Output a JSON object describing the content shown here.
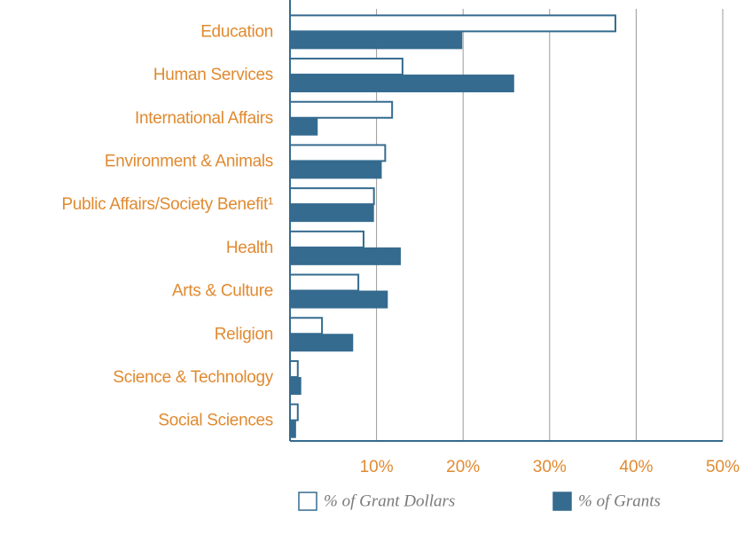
{
  "chart_data": {
    "type": "bar",
    "orientation": "horizontal",
    "categories": [
      "Education",
      "Human Services",
      "International Affairs",
      "Environment & Animals",
      "Public Affairs/Society Benefit¹",
      "Health",
      "Arts & Culture",
      "Religion",
      "Science & Technology",
      "Social Sciences"
    ],
    "series": [
      {
        "name": "% of Grant Dollars",
        "color": "#ffffff",
        "values": [
          37.6,
          13.0,
          11.8,
          11.0,
          9.7,
          8.5,
          7.9,
          3.7,
          0.9,
          0.9
        ]
      },
      {
        "name": "% of Grants",
        "color": "#356b8f",
        "values": [
          19.8,
          25.8,
          3.1,
          10.5,
          9.6,
          12.7,
          11.2,
          7.2,
          1.2,
          0.6
        ]
      }
    ],
    "xlim": [
      0,
      50
    ],
    "xticks": [
      {
        "value": 10,
        "label": "10%"
      },
      {
        "value": 20,
        "label": "20%"
      },
      {
        "value": 30,
        "label": "30%"
      },
      {
        "value": 40,
        "label": "40%"
      },
      {
        "value": 50,
        "label": "50%"
      }
    ],
    "grid": true
  }
}
